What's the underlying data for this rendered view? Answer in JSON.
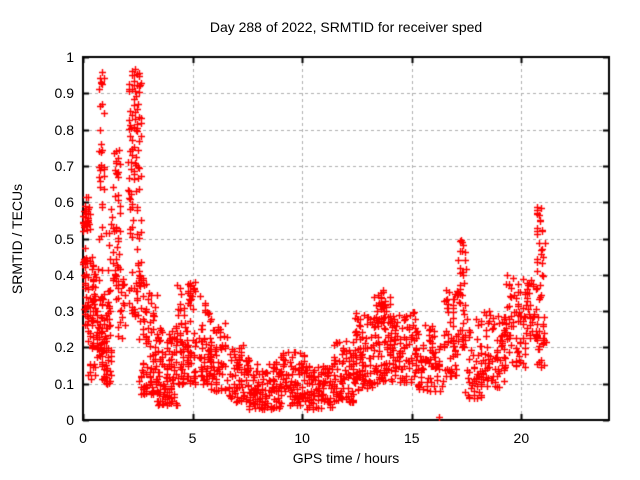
{
  "window": {
    "background_color": "#ffffff"
  },
  "chart_data": {
    "type": "scatter",
    "title": "Day 288 of 2022, SRMTID for receiver sped",
    "xlabel": "GPS time / hours",
    "ylabel": "SRMTID / TECUs",
    "xlim": [
      0,
      24
    ],
    "ylim": [
      0,
      1
    ],
    "xticks": [
      0,
      5,
      10,
      15,
      20
    ],
    "yticks": [
      0,
      0.1,
      0.2,
      0.3,
      0.4,
      0.5,
      0.6,
      0.7,
      0.8,
      0.9,
      1
    ],
    "grid": true,
    "grid_style": "dashed-gray",
    "legend": "none",
    "marker": {
      "shape": "plus",
      "color": "#ff0000",
      "size": 7
    },
    "axis_color": "#000000",
    "grid_color": "#b0b0b0",
    "x_data_range_hours": [
      0,
      21.2
    ],
    "notes": "Dense scatter of ionospheric TID amplitude vs GPS time; spikes near 1.0 at ~0.9h and ~2.3h, quiet midday minimum ~0.05-0.15 TECU between 7h and 11h, secondary peaks 0.5 at ~17.3h and 0.59 at ~20.9h, no data after ~21.2h, two near-zero points at ~16.2h",
    "clusters_format": [
      "x_start_hours",
      "x_end_hours",
      "y_min_tecus",
      "y_max_tecus",
      "count",
      "density_skew"
    ],
    "series": [
      {
        "name": "SRMTID",
        "clusters": [
          [
            0.0,
            0.3,
            0.42,
            0.62,
            26,
            1
          ],
          [
            0.0,
            0.22,
            0.53,
            0.6,
            16,
            1
          ],
          [
            0.05,
            0.58,
            0.26,
            0.45,
            60,
            1.1
          ],
          [
            0.15,
            0.6,
            0.11,
            0.26,
            20,
            0.9
          ],
          [
            0.6,
            0.85,
            0.15,
            0.3,
            25,
            1
          ],
          [
            0.72,
            0.96,
            0.28,
            0.98,
            42,
            1
          ],
          [
            0.82,
            1.28,
            0.1,
            0.3,
            60,
            1.25
          ],
          [
            1.05,
            1.38,
            0.3,
            0.55,
            18,
            1
          ],
          [
            1.3,
            1.72,
            0.38,
            0.76,
            40,
            1
          ],
          [
            1.5,
            1.95,
            0.22,
            0.42,
            22,
            1
          ],
          [
            2.05,
            2.65,
            0.45,
            0.97,
            85,
            0.72
          ],
          [
            2.08,
            2.62,
            0.28,
            0.45,
            25,
            1
          ],
          [
            2.55,
            3.35,
            0.07,
            0.4,
            90,
            1.6
          ],
          [
            3.3,
            4.35,
            0.04,
            0.26,
            110,
            1.5
          ],
          [
            3.95,
            4.5,
            0.2,
            0.33,
            14,
            1
          ],
          [
            4.35,
            5.15,
            0.1,
            0.38,
            80,
            1.35
          ],
          [
            4.75,
            5.1,
            0.33,
            0.38,
            14,
            1
          ],
          [
            5.3,
            5.78,
            0.1,
            0.345,
            48,
            1.3
          ],
          [
            5.78,
            6.6,
            0.08,
            0.28,
            62,
            1.45
          ],
          [
            6.6,
            7.6,
            0.05,
            0.21,
            75,
            1.4
          ],
          [
            7.6,
            9.0,
            0.03,
            0.16,
            110,
            1.35
          ],
          [
            9.0,
            10.1,
            0.04,
            0.19,
            90,
            1.35
          ],
          [
            10.1,
            11.4,
            0.03,
            0.15,
            100,
            1.25
          ],
          [
            11.4,
            12.4,
            0.05,
            0.22,
            88,
            1.25
          ],
          [
            12.4,
            13.25,
            0.08,
            0.3,
            85,
            1.2
          ],
          [
            13.25,
            14.1,
            0.1,
            0.34,
            90,
            1.15
          ],
          [
            13.45,
            13.75,
            0.3,
            0.375,
            10,
            1
          ],
          [
            14.1,
            15.2,
            0.1,
            0.31,
            95,
            1.15
          ],
          [
            15.2,
            16.0,
            0.08,
            0.27,
            60,
            1.2
          ],
          [
            16.0,
            16.45,
            0.08,
            0.21,
            22,
            1
          ],
          [
            16.12,
            16.3,
            0.004,
            0.012,
            2,
            1
          ],
          [
            16.45,
            17.1,
            0.12,
            0.36,
            55,
            1.1
          ],
          [
            17.1,
            17.45,
            0.16,
            0.5,
            42,
            0.85
          ],
          [
            17.45,
            18.25,
            0.06,
            0.28,
            56,
            1.2
          ],
          [
            18.25,
            19.25,
            0.09,
            0.3,
            75,
            1.15
          ],
          [
            19.25,
            20.25,
            0.14,
            0.4,
            75,
            1.1
          ],
          [
            20.25,
            20.65,
            0.22,
            0.4,
            30,
            1
          ],
          [
            20.68,
            21.02,
            0.3,
            0.59,
            30,
            0.8
          ],
          [
            20.7,
            21.15,
            0.14,
            0.3,
            25,
            1
          ]
        ]
      }
    ]
  }
}
